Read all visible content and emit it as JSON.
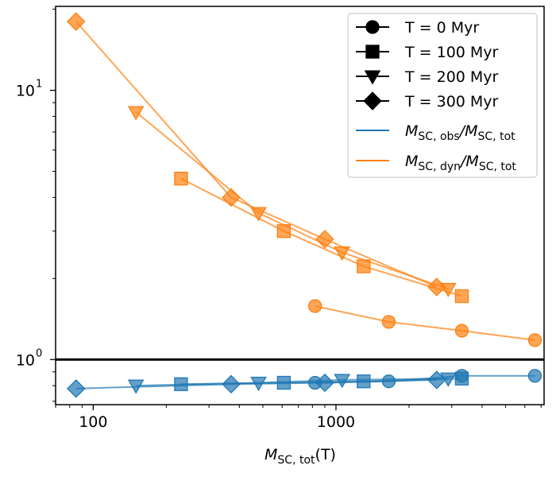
{
  "chart_data": {
    "type": "line",
    "xscale": "log",
    "yscale": "log",
    "xlim": [
      70,
      7200
    ],
    "ylim": [
      0.68,
      20.5
    ],
    "xlabel_main": "M",
    "xlabel_sub": "SC, tot",
    "xlabel_suffix": "(T)",
    "xticks": [
      {
        "value": 100,
        "label": "100"
      },
      {
        "value": 1000,
        "label": "1000"
      }
    ],
    "yticks": [
      {
        "value": 1,
        "label": "10",
        "exp": "0"
      },
      {
        "value": 10,
        "label": "10",
        "exp": "1"
      }
    ],
    "reference_line": 1.0,
    "colors": {
      "obs": "#1f77b4",
      "dyn": "#ff7f0e"
    },
    "series": [
      {
        "name": "T = 0 Myr",
        "marker": "circle",
        "kind": "obs",
        "x": [
          820,
          1650,
          3300,
          6600
        ],
        "y": [
          0.82,
          0.83,
          0.87,
          0.87
        ]
      },
      {
        "name": "T = 0 Myr",
        "marker": "circle",
        "kind": "dyn",
        "x": [
          820,
          1650,
          3300,
          6600
        ],
        "y": [
          1.58,
          1.38,
          1.28,
          1.18
        ]
      },
      {
        "name": "T = 100 Myr",
        "marker": "square",
        "kind": "obs",
        "x": [
          230,
          610,
          1300,
          3300
        ],
        "y": [
          0.81,
          0.82,
          0.83,
          0.85
        ]
      },
      {
        "name": "T = 100 Myr",
        "marker": "square",
        "kind": "dyn",
        "x": [
          230,
          610,
          1300,
          3300
        ],
        "y": [
          4.7,
          3.0,
          2.22,
          1.72
        ]
      },
      {
        "name": "T = 200 Myr",
        "marker": "triangle-down",
        "kind": "obs",
        "x": [
          150,
          480,
          1060,
          2900
        ],
        "y": [
          0.8,
          0.82,
          0.84,
          0.85
        ]
      },
      {
        "name": "T = 200 Myr",
        "marker": "triangle-down",
        "kind": "dyn",
        "x": [
          150,
          480,
          1060,
          2900
        ],
        "y": [
          8.3,
          3.5,
          2.5,
          1.83
        ]
      },
      {
        "name": "T = 300 Myr",
        "marker": "diamond",
        "kind": "obs",
        "x": [
          85,
          370,
          900,
          2600
        ],
        "y": [
          0.78,
          0.81,
          0.82,
          0.84
        ]
      },
      {
        "name": "T = 300 Myr",
        "marker": "diamond",
        "kind": "dyn",
        "x": [
          85,
          370,
          900,
          2600
        ],
        "y": [
          18.0,
          4.0,
          2.8,
          1.86
        ]
      }
    ],
    "legend": {
      "position": "top-right",
      "marker_entries": [
        {
          "label": "T = 0 Myr",
          "marker": "circle"
        },
        {
          "label": "T = 100 Myr",
          "marker": "square"
        },
        {
          "label": "T = 200 Myr",
          "marker": "triangle-down"
        },
        {
          "label": "T = 300 Myr",
          "marker": "diamond"
        }
      ],
      "line_entries": [
        {
          "kind": "obs",
          "num_main": "M",
          "num_sub": "SC, obs",
          "den_main": "M",
          "den_sub": "SC, tot"
        },
        {
          "kind": "dyn",
          "num_main": "M",
          "num_sub": "SC, dyn",
          "den_main": "M",
          "den_sub": "SC, tot"
        }
      ]
    }
  }
}
